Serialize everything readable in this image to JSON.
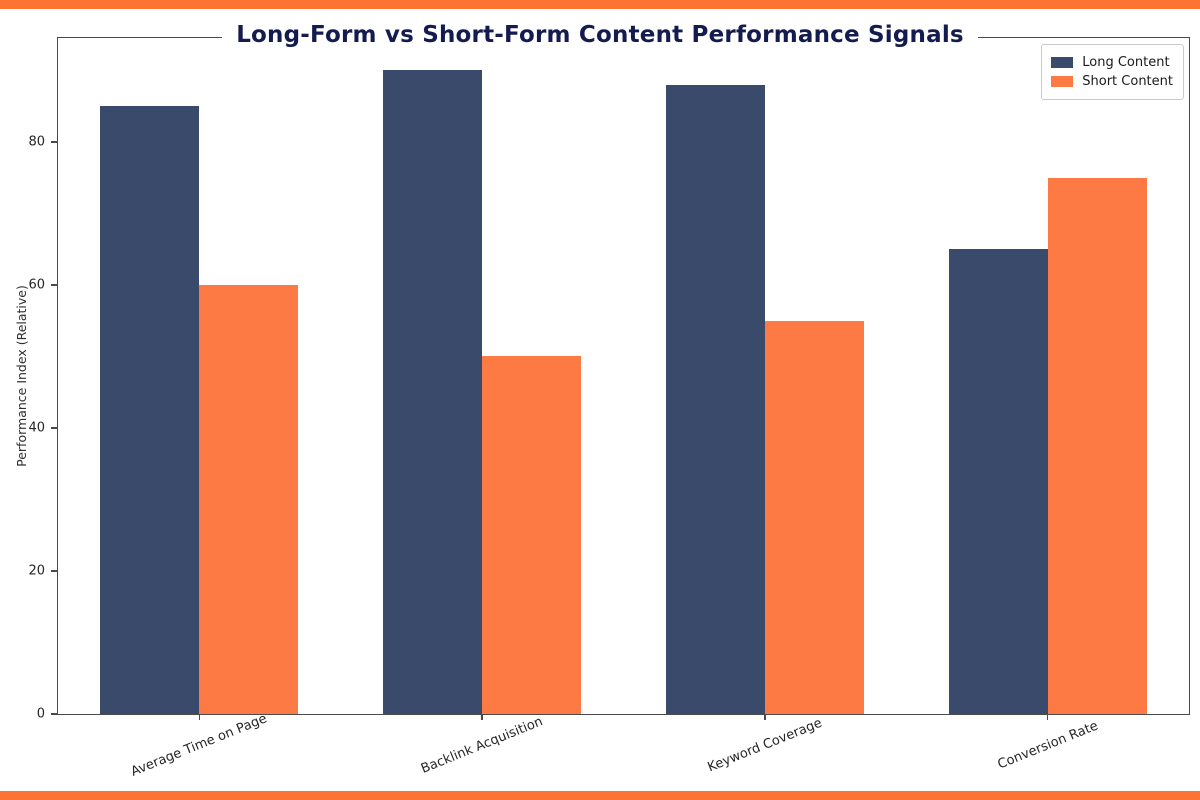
{
  "frame": {
    "accent_color": "#fd7333"
  },
  "chart_data": {
    "type": "bar",
    "title": "Long-Form vs Short-Form Content Performance Signals",
    "title_color": "#131b4f",
    "categories": [
      "Average Time on Page",
      "Backlink Acquisition",
      "Keyword Coverage",
      "Conversion Rate"
    ],
    "series": [
      {
        "name": "Long Content",
        "color": "#3a4a6b",
        "values": [
          85,
          90,
          88,
          65
        ]
      },
      {
        "name": "Short Content",
        "color": "#fd7a44",
        "values": [
          60,
          50,
          55,
          75
        ]
      }
    ],
    "xlabel": "",
    "ylabel": "Performance Index (Relative)",
    "yticks": [
      0,
      20,
      40,
      60,
      80
    ],
    "ylim": [
      0,
      94.5
    ],
    "grid": false,
    "legend_position": "upper right",
    "bar_width_fraction": 0.35
  }
}
